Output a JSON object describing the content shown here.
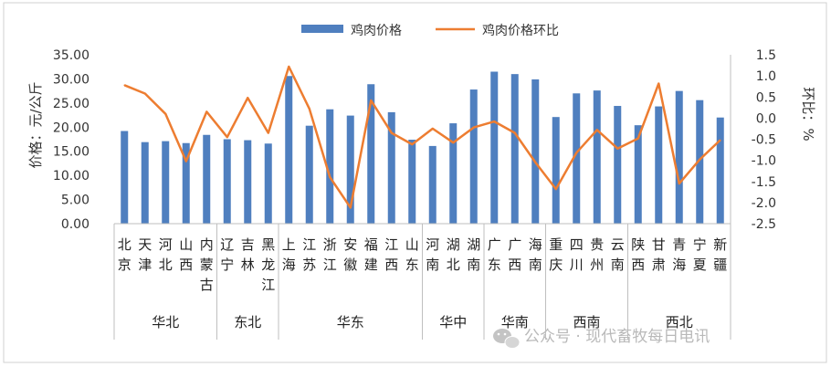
{
  "chart_data": {
    "type": "bar",
    "legend": [
      "鸡肉价格",
      "鸡肉价格环比"
    ],
    "ylabel_left": "价格：元/公斤",
    "ylabel_right": "环比：%",
    "ylim_left": [
      0,
      35
    ],
    "ylim_right": [
      -2.5,
      1.5
    ],
    "yticks_left": [
      "0.00",
      "5.00",
      "10.00",
      "15.00",
      "20.00",
      "25.00",
      "30.00",
      "35.00"
    ],
    "yticks_right": [
      "-2.5",
      "-2.0",
      "-1.5",
      "-1.0",
      "-0.5",
      "0.0",
      "0.5",
      "1.0",
      "1.5"
    ],
    "categories": [
      "北京",
      "天津",
      "河北",
      "山西",
      "内蒙古",
      "辽宁",
      "吉林",
      "黑龙江",
      "上海",
      "江苏",
      "浙江",
      "安徽",
      "福建",
      "江西",
      "山东",
      "河南",
      "湖北",
      "湖南",
      "广东",
      "广西",
      "海南",
      "重庆",
      "四川",
      "贵州",
      "云南",
      "陕西",
      "甘肃",
      "青海",
      "宁夏",
      "新疆"
    ],
    "regions": [
      {
        "name": "华北",
        "count": 5
      },
      {
        "name": "东北",
        "count": 3
      },
      {
        "name": "华东",
        "count": 7
      },
      {
        "name": "华中",
        "count": 3
      },
      {
        "name": "华南",
        "count": 3
      },
      {
        "name": "西南",
        "count": 4
      },
      {
        "name": "西北",
        "count": 5
      }
    ],
    "series": [
      {
        "name": "鸡肉价格",
        "type": "bar",
        "color": "#4f7fbf",
        "values": [
          19.2,
          16.9,
          17.1,
          16.7,
          18.4,
          17.5,
          17.3,
          16.6,
          30.6,
          20.3,
          23.7,
          22.4,
          28.9,
          23.1,
          17.4,
          16.1,
          20.8,
          27.8,
          31.5,
          31.0,
          29.9,
          22.1,
          27.0,
          27.6,
          24.4,
          20.4,
          24.3,
          27.5,
          25.6,
          22.0
        ]
      },
      {
        "name": "鸡肉价格环比",
        "type": "line",
        "color": "#ed7d31",
        "values": [
          0.78,
          0.58,
          0.1,
          -1.02,
          0.15,
          -0.45,
          0.48,
          -0.35,
          1.22,
          0.22,
          -1.4,
          -2.12,
          0.42,
          -0.35,
          -0.62,
          -0.25,
          -0.58,
          -0.22,
          -0.08,
          -0.35,
          -1.05,
          -1.68,
          -0.82,
          -0.28,
          -0.72,
          -0.48,
          0.82,
          -1.55,
          -0.98,
          -0.52
        ]
      }
    ]
  },
  "watermark": {
    "text": "公众号 · 现代畜牧每日电讯",
    "icon": "wechat-icon"
  }
}
